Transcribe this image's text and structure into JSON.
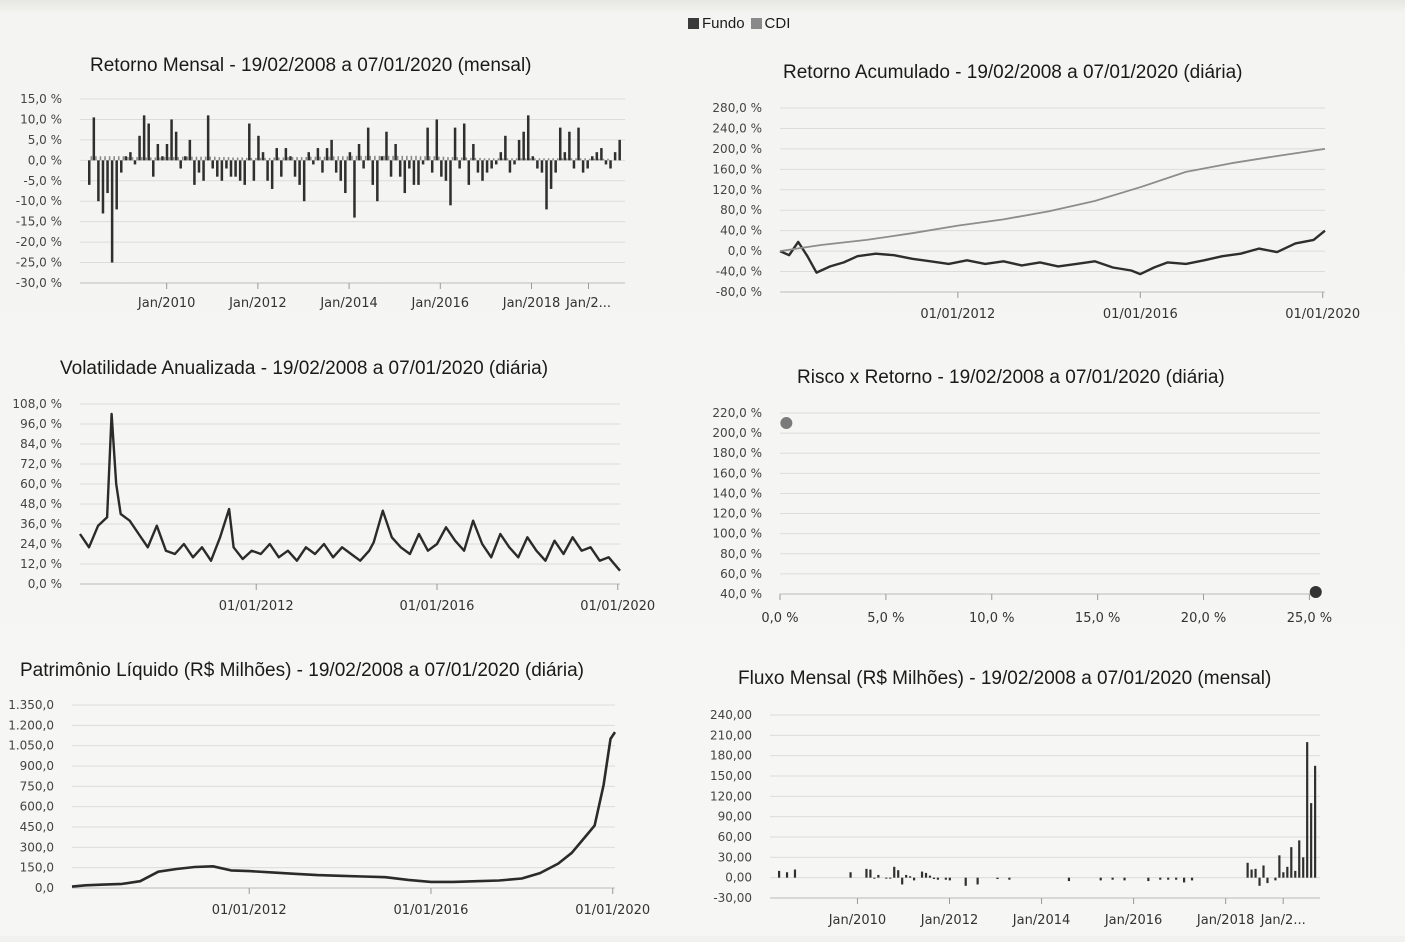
{
  "legend": {
    "items": [
      {
        "label": "Fundo",
        "color": "#3a3a3a"
      },
      {
        "label": "CDI",
        "color": "#8a8a8a"
      }
    ]
  },
  "chart_data": [
    {
      "id": "retorno-mensal",
      "type": "bar",
      "title": "Retorno Mensal - 19/02/2008 a 07/01/2020 (mensal)",
      "y_ticks": [
        "15,0 %",
        "10,0 %",
        "5,0 %",
        "0,0 %",
        "-5,0 %",
        "-10,0 %",
        "-15,0 %",
        "-20,0 %",
        "-25,0 %",
        "-30,0 %"
      ],
      "ylim": [
        -30,
        15
      ],
      "x_ticks": [
        "Jan/2010",
        "Jan/2012",
        "Jan/2014",
        "Jan/2016",
        "Jan/2018",
        "Jan/2..."
      ],
      "x_tick_positions": [
        2010,
        2012,
        2014,
        2016,
        2018,
        2019.25
      ],
      "xlim": [
        2008.1,
        2020.05
      ],
      "series": [
        {
          "name": "Fundo",
          "values": [
            -6,
            10.5,
            -10,
            -13,
            -8,
            -25,
            -12,
            -3,
            1,
            2,
            -1,
            6,
            11,
            9,
            -4,
            4,
            1,
            4,
            10,
            7,
            -2,
            1,
            5,
            -6,
            -3,
            -5,
            11,
            -2,
            -4,
            -5,
            -2,
            -4,
            -4,
            -5,
            -6,
            9,
            -5,
            6,
            2,
            -5,
            -7,
            3,
            -4,
            3,
            1,
            -4,
            -6,
            -10,
            2,
            -1,
            3,
            -3,
            3,
            5,
            -3,
            -5,
            -8,
            2,
            -14,
            4,
            -2,
            8,
            -6,
            -10,
            1,
            7,
            -4,
            4,
            -4,
            -8,
            -2,
            -6,
            -6,
            -1,
            8,
            -3,
            10,
            -4,
            -5,
            -11,
            8,
            -2,
            9,
            -6,
            4,
            -3,
            -5,
            -3,
            -2,
            -1,
            2,
            6,
            -3,
            -1,
            5,
            7,
            11,
            1,
            -2,
            -3,
            -12,
            -7,
            -3,
            8,
            2,
            7,
            -2,
            8,
            -3,
            -2,
            1,
            2,
            3,
            -1,
            -2,
            2,
            5
          ]
        },
        {
          "name": "CDI",
          "values": [
            1,
            1,
            1,
            1,
            1,
            1,
            1,
            1,
            0.8,
            0.8,
            0.8,
            0.8,
            0.7,
            0.7,
            0.7,
            0.7,
            0.8,
            0.8,
            0.8,
            0.8,
            0.9,
            0.9,
            0.9,
            0.9,
            0.9,
            0.9,
            0.9,
            0.9,
            0.8,
            0.8,
            0.8,
            0.7,
            0.7,
            0.7,
            0.6,
            0.6,
            0.6,
            0.6,
            0.6,
            0.6,
            0.7,
            0.7,
            0.7,
            0.8,
            0.8,
            0.8,
            0.8,
            0.8,
            0.9,
            0.9,
            0.9,
            0.9,
            0.9,
            1,
            1,
            1,
            1,
            1.1,
            1.1,
            1.1,
            1.1,
            1.1,
            1.1,
            1.1,
            1.1,
            1.1,
            1.1,
            1.1,
            1.1,
            1.1,
            1.1,
            1.1,
            1,
            1,
            1,
            1,
            0.9,
            0.9,
            0.8,
            0.8,
            0.8,
            0.7,
            0.7,
            0.6,
            0.6,
            0.6,
            0.5,
            0.5,
            0.5,
            0.5,
            0.5,
            0.5,
            0.5,
            0.5,
            0.5,
            0.5,
            0.5,
            0.5,
            0.5,
            0.5,
            0.5,
            0.5,
            0.5,
            0.5,
            0.5,
            0.5,
            0.5,
            0.5,
            0.5,
            0.4,
            0.4,
            0.4,
            0.4,
            0.4
          ]
        }
      ]
    },
    {
      "id": "retorno-acumulado",
      "type": "line",
      "title": "Retorno Acumulado - 19/02/2008 a 07/01/2020 (diária)",
      "y_ticks": [
        "280,0 %",
        "240,0 %",
        "200,0 %",
        "160,0 %",
        "120,0 %",
        "80,0 %",
        "40,0 %",
        "0,0 %",
        "-40,0 %",
        "-80,0 %"
      ],
      "ylim": [
        -80,
        280
      ],
      "x_ticks": [
        "01/01/2012",
        "01/01/2016",
        "01/01/2020"
      ],
      "x_tick_positions": [
        2012,
        2016,
        2020
      ],
      "xlim": [
        2008.1,
        2020.05
      ],
      "series": [
        {
          "name": "Fundo",
          "x": [
            2008.1,
            2008.3,
            2008.5,
            2008.7,
            2008.9,
            2009.2,
            2009.5,
            2009.8,
            2010.2,
            2010.6,
            2011.0,
            2011.4,
            2011.8,
            2012.2,
            2012.6,
            2013.0,
            2013.4,
            2013.8,
            2014.2,
            2014.6,
            2015.0,
            2015.4,
            2015.8,
            2016.0,
            2016.3,
            2016.6,
            2017.0,
            2017.4,
            2017.8,
            2018.2,
            2018.6,
            2019.0,
            2019.4,
            2019.8,
            2020.05
          ],
          "y": [
            0,
            -8,
            18,
            -10,
            -42,
            -30,
            -22,
            -10,
            -5,
            -8,
            -15,
            -20,
            -25,
            -18,
            -25,
            -20,
            -28,
            -22,
            -30,
            -25,
            -20,
            -32,
            -38,
            -45,
            -32,
            -22,
            -25,
            -18,
            -10,
            -5,
            5,
            -2,
            15,
            22,
            40
          ]
        },
        {
          "name": "CDI",
          "x": [
            2008.1,
            2009,
            2010,
            2011,
            2012,
            2013,
            2014,
            2015,
            2016,
            2017,
            2018,
            2019,
            2020.05
          ],
          "y": [
            0,
            12,
            22,
            35,
            50,
            62,
            78,
            98,
            125,
            155,
            172,
            186,
            200
          ]
        }
      ]
    },
    {
      "id": "volatilidade",
      "type": "line",
      "title": "Volatilidade Anualizada - 19/02/2008 a 07/01/2020 (diária)",
      "y_ticks": [
        "108,0 %",
        "96,0 %",
        "84,0 %",
        "72,0 %",
        "60,0 %",
        "48,0 %",
        "36,0 %",
        "24,0 %",
        "12,0 %",
        "0,0 %"
      ],
      "ylim": [
        0,
        108
      ],
      "x_ticks": [
        "01/01/2012",
        "01/01/2016",
        "01/01/2020"
      ],
      "x_tick_positions": [
        2012,
        2016,
        2020
      ],
      "xlim": [
        2008.1,
        2020.05
      ],
      "series": [
        {
          "name": "Fundo",
          "x": [
            2008.1,
            2008.3,
            2008.5,
            2008.7,
            2008.8,
            2008.9,
            2009.0,
            2009.2,
            2009.4,
            2009.6,
            2009.8,
            2010.0,
            2010.2,
            2010.4,
            2010.6,
            2010.8,
            2011.0,
            2011.2,
            2011.4,
            2011.5,
            2011.7,
            2011.9,
            2012.1,
            2012.3,
            2012.5,
            2012.7,
            2012.9,
            2013.1,
            2013.3,
            2013.5,
            2013.7,
            2013.9,
            2014.1,
            2014.3,
            2014.5,
            2014.6,
            2014.8,
            2015.0,
            2015.2,
            2015.4,
            2015.6,
            2015.8,
            2016.0,
            2016.2,
            2016.4,
            2016.6,
            2016.8,
            2017.0,
            2017.2,
            2017.4,
            2017.6,
            2017.8,
            2018.0,
            2018.2,
            2018.4,
            2018.6,
            2018.8,
            2019.0,
            2019.2,
            2019.4,
            2019.6,
            2019.8,
            2020.05
          ],
          "y": [
            30,
            22,
            35,
            40,
            102,
            60,
            42,
            38,
            30,
            22,
            35,
            20,
            18,
            24,
            16,
            22,
            14,
            28,
            45,
            22,
            15,
            20,
            18,
            24,
            16,
            20,
            14,
            22,
            18,
            24,
            16,
            22,
            18,
            14,
            20,
            25,
            44,
            28,
            22,
            18,
            30,
            20,
            24,
            34,
            26,
            20,
            38,
            24,
            16,
            30,
            22,
            16,
            28,
            20,
            14,
            26,
            18,
            28,
            20,
            22,
            14,
            16,
            8
          ]
        }
      ]
    },
    {
      "id": "risco-retorno",
      "type": "scatter",
      "title": "Risco x Retorno - 19/02/2008 a 07/01/2020 (diária)",
      "y_ticks": [
        "220,0 %",
        "200,0 %",
        "180,0 %",
        "160,0 %",
        "140,0 %",
        "120,0 %",
        "100,0 %",
        "80,0 %",
        "60,0 %",
        "40,0 %"
      ],
      "ylim": [
        40,
        220
      ],
      "x_ticks": [
        "0,0 %",
        "5,0 %",
        "10,0 %",
        "15,0 %",
        "20,0 %",
        "25,0 %"
      ],
      "x_tick_positions": [
        0,
        5,
        10,
        15,
        20,
        25
      ],
      "xlim": [
        0,
        25.5
      ],
      "series": [
        {
          "name": "CDI",
          "x": [
            0.3
          ],
          "y": [
            210
          ],
          "color": "#7a7a7a"
        },
        {
          "name": "Fundo",
          "x": [
            25.3
          ],
          "y": [
            42
          ],
          "color": "#333333"
        }
      ]
    },
    {
      "id": "patrimonio",
      "type": "line",
      "title": "Patrimônio Líquido (R$ Milhões) - 19/02/2008 a 07/01/2020 (diária)",
      "y_ticks": [
        "1.350,0",
        "1.200,0",
        "1.050,0",
        "900,0",
        "750,0",
        "600,0",
        "450,0",
        "300,0",
        "150,0",
        "0,0"
      ],
      "ylim": [
        0,
        1350
      ],
      "x_ticks": [
        "01/01/2012",
        "01/01/2016",
        "01/01/2020"
      ],
      "x_tick_positions": [
        2012,
        2016,
        2020
      ],
      "xlim": [
        2008.1,
        2020.05
      ],
      "series": [
        {
          "name": "Fundo",
          "x": [
            2008.1,
            2008.4,
            2008.8,
            2009.2,
            2009.6,
            2010.0,
            2010.4,
            2010.8,
            2011.2,
            2011.6,
            2012.0,
            2012.5,
            2013.0,
            2013.5,
            2014.0,
            2014.5,
            2015.0,
            2015.5,
            2016.0,
            2016.5,
            2017.0,
            2017.5,
            2018.0,
            2018.4,
            2018.8,
            2019.1,
            2019.4,
            2019.6,
            2019.8,
            2019.95,
            2020.05
          ],
          "y": [
            10,
            20,
            25,
            30,
            50,
            120,
            140,
            155,
            160,
            130,
            125,
            115,
            105,
            95,
            90,
            85,
            80,
            60,
            45,
            45,
            50,
            55,
            70,
            110,
            180,
            260,
            380,
            460,
            760,
            1100,
            1150
          ]
        }
      ]
    },
    {
      "id": "fluxo-mensal",
      "type": "bar",
      "title": "Fluxo Mensal (R$ Milhões) - 19/02/2008 a 07/01/2020 (mensal)",
      "y_ticks": [
        "240,00",
        "210,00",
        "180,00",
        "150,00",
        "120,00",
        "90,00",
        "60,00",
        "30,00",
        "0,00",
        "-30,00"
      ],
      "ylim": [
        -30,
        240
      ],
      "x_ticks": [
        "Jan/2010",
        "Jan/2012",
        "Jan/2014",
        "Jan/2016",
        "Jan/2018",
        "Jan/2..."
      ],
      "x_tick_positions": [
        2010,
        2012,
        2014,
        2016,
        2018,
        2019.25
      ],
      "xlim": [
        2008.1,
        2020.05
      ],
      "series": [
        {
          "name": "Fundo",
          "values": [
            10,
            0,
            8,
            0,
            12,
            0,
            0,
            0,
            0,
            0,
            0,
            0,
            0,
            0,
            0,
            0,
            0,
            0,
            8,
            0,
            0,
            0,
            13,
            12,
            -1,
            4,
            0,
            -1,
            -1,
            16,
            11,
            -10,
            4,
            2,
            -4,
            0,
            9,
            7,
            3,
            -2,
            -3,
            0,
            -3,
            -4,
            0,
            0,
            0,
            -12,
            0,
            0,
            -10,
            0,
            0,
            0,
            0,
            -2,
            0,
            0,
            -3,
            0,
            0,
            0,
            0,
            0,
            0,
            0,
            0,
            0,
            0,
            0,
            0,
            0,
            0,
            -5,
            0,
            0,
            0,
            0,
            0,
            0,
            0,
            -4,
            0,
            0,
            -3,
            0,
            0,
            -4,
            0,
            0,
            0,
            0,
            0,
            -5,
            0,
            0,
            -3,
            0,
            -3,
            0,
            -3,
            0,
            -7,
            0,
            -4,
            0,
            0,
            0,
            0,
            0,
            0,
            0,
            0,
            0,
            0,
            0,
            0,
            0,
            22,
            12,
            13,
            -12,
            18,
            -8,
            0,
            -4,
            33,
            8,
            16,
            45,
            10,
            55,
            30,
            200,
            110,
            165
          ]
        }
      ]
    }
  ]
}
